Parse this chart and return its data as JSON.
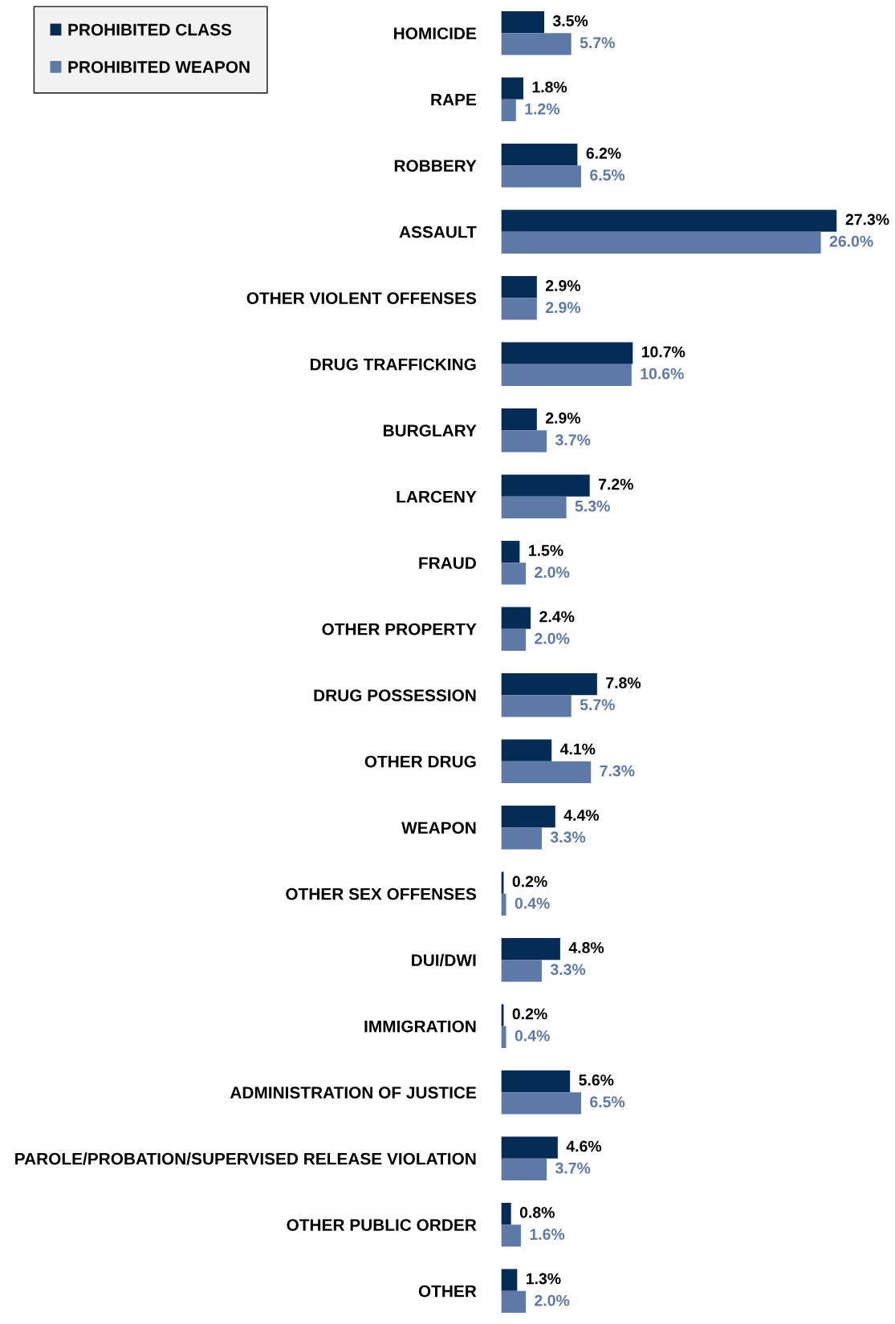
{
  "chart_data": {
    "type": "bar",
    "orientation": "horizontal",
    "categories": [
      "HOMICIDE",
      "RAPE",
      "ROBBERY",
      "ASSAULT",
      "OTHER VIOLENT OFFENSES",
      "DRUG TRAFFICKING",
      "BURGLARY",
      "LARCENY",
      "FRAUD",
      "OTHER PROPERTY",
      "DRUG POSSESSION",
      "OTHER DRUG",
      "WEAPON",
      "OTHER SEX OFFENSES",
      "DUI/DWI",
      "IMMIGRATION",
      "ADMINISTRATION OF JUSTICE",
      "PAROLE/PROBATION/SUPERVISED RELEASE VIOLATION",
      "OTHER PUBLIC ORDER",
      "OTHER"
    ],
    "series": [
      {
        "name": "PROHIBITED CLASS",
        "color": "#052c57",
        "values": [
          3.5,
          1.8,
          6.2,
          27.3,
          2.9,
          10.7,
          2.9,
          7.2,
          1.5,
          2.4,
          7.8,
          4.1,
          4.4,
          0.2,
          4.8,
          0.2,
          5.6,
          4.6,
          0.8,
          1.3
        ],
        "value_labels": [
          "3.5%",
          "1.8%",
          "6.2%",
          "27.3%",
          "2.9%",
          "10.7%",
          "2.9%",
          "7.2%",
          "1.5%",
          "2.4%",
          "7.8%",
          "4.1%",
          "4.4%",
          "0.2%",
          "4.8%",
          "0.2%",
          "5.6%",
          "4.6%",
          "0.8%",
          "1.3%"
        ]
      },
      {
        "name": "PROHIBITED WEAPON",
        "color": "#5d79a8",
        "values": [
          5.7,
          1.2,
          6.5,
          26.0,
          2.9,
          10.6,
          3.7,
          5.3,
          2.0,
          2.0,
          5.7,
          7.3,
          3.3,
          0.4,
          3.3,
          0.4,
          6.5,
          3.7,
          1.6,
          2.0
        ],
        "value_labels": [
          "5.7%",
          "1.2%",
          "6.5%",
          "26.0%",
          "2.9%",
          "10.6%",
          "3.7%",
          "5.3%",
          "2.0%",
          "2.0%",
          "5.7%",
          "7.3%",
          "3.3%",
          "0.4%",
          "3.3%",
          "0.4%",
          "6.5%",
          "3.7%",
          "1.6%",
          "2.0%"
        ]
      }
    ],
    "legend": "top left",
    "grid": false
  }
}
